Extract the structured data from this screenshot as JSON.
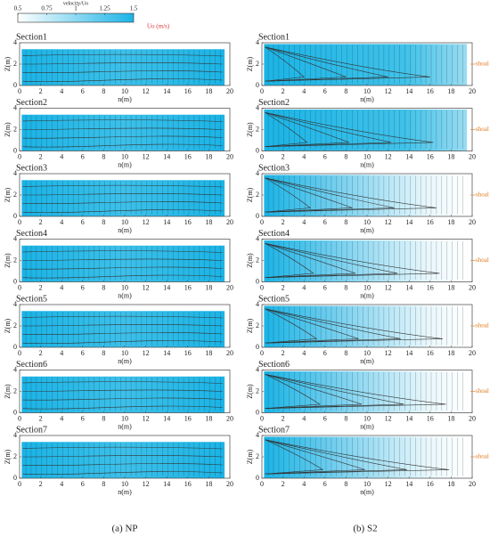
{
  "colorbar": {
    "label": "velocity/Uo",
    "lim": [
      0.5,
      1.5
    ],
    "ticks": [
      0.5,
      0.75,
      1,
      1.25,
      1.5
    ],
    "unit_label": "Uo (m/s)",
    "colors": [
      "#ffffff",
      "#1ab4e6"
    ]
  },
  "captions": [
    "(a)  NP",
    "(b)  S2"
  ],
  "chart_data": [
    {
      "type": "contour",
      "title": "Section1",
      "xlabel": "n(m)",
      "ylabel": "Z(m)",
      "xlim": [
        0,
        20
      ],
      "ylim": [
        0,
        4
      ],
      "xticks": [
        0,
        2,
        4,
        6,
        8,
        10,
        12,
        14,
        16,
        18,
        20
      ],
      "yticks": [
        0,
        2,
        4
      ]
    },
    {
      "type": "contour",
      "title": "Section2",
      "xlabel": "n(m)",
      "ylabel": "Z(m)",
      "xlim": [
        0,
        20
      ],
      "ylim": [
        0,
        4
      ],
      "xticks": [
        0,
        2,
        4,
        6,
        8,
        10,
        12,
        14,
        16,
        18,
        20
      ],
      "yticks": [
        0,
        2,
        4
      ]
    },
    {
      "type": "contour",
      "title": "Section3",
      "xlabel": "n(m)",
      "ylabel": "Z(m)",
      "xlim": [
        0,
        20
      ],
      "ylim": [
        0,
        4
      ],
      "xticks": [
        0,
        2,
        4,
        6,
        8,
        10,
        12,
        14,
        16,
        18,
        20
      ],
      "yticks": [
        0,
        2,
        4
      ]
    },
    {
      "type": "contour",
      "title": "Section4",
      "xlabel": "n(m)",
      "ylabel": "Z(m)",
      "xlim": [
        0,
        20
      ],
      "ylim": [
        0,
        4
      ],
      "xticks": [
        0,
        2,
        4,
        6,
        8,
        10,
        12,
        14,
        16,
        18,
        20
      ],
      "yticks": [
        0,
        2,
        4
      ]
    },
    {
      "type": "contour",
      "title": "Section5",
      "xlabel": "n(m)",
      "ylabel": "Z(m)",
      "xlim": [
        0,
        20
      ],
      "ylim": [
        0,
        4
      ],
      "xticks": [
        0,
        2,
        4,
        6,
        8,
        10,
        12,
        14,
        16,
        18,
        20
      ],
      "yticks": [
        0,
        2,
        4
      ]
    },
    {
      "type": "contour",
      "title": "Section6",
      "xlabel": "n(m)",
      "ylabel": "Z(m)",
      "xlim": [
        0,
        20
      ],
      "ylim": [
        0,
        4
      ],
      "xticks": [
        0,
        2,
        4,
        6,
        8,
        10,
        12,
        14,
        16,
        18,
        20
      ],
      "yticks": [
        0,
        2,
        4
      ]
    },
    {
      "type": "contour",
      "title": "Section7",
      "xlabel": "n(m)",
      "ylabel": "Z(m)",
      "xlim": [
        0,
        20
      ],
      "ylim": [
        0,
        4
      ],
      "xticks": [
        0,
        2,
        4,
        6,
        8,
        10,
        12,
        14,
        16,
        18,
        20
      ],
      "yticks": [
        0,
        2,
        4
      ]
    },
    {
      "type": "contour",
      "title": "Section1",
      "xlabel": "n(m)",
      "ylabel": "Z(m)",
      "xlim": [
        0,
        20
      ],
      "ylim": [
        0,
        4
      ],
      "xticks": [
        0,
        2,
        4,
        6,
        8,
        10,
        12,
        14,
        16,
        18,
        20
      ],
      "yticks": [
        0,
        2,
        4
      ],
      "annotation": "shoal"
    },
    {
      "type": "contour",
      "title": "Section2",
      "xlabel": "n(m)",
      "ylabel": "Z(m)",
      "xlim": [
        0,
        20
      ],
      "ylim": [
        0,
        4
      ],
      "xticks": [
        0,
        2,
        4,
        6,
        8,
        10,
        12,
        14,
        16,
        18,
        20
      ],
      "yticks": [
        0,
        2,
        4
      ],
      "annotation": "shoal"
    },
    {
      "type": "contour",
      "title": "Section3",
      "xlabel": "n(m)",
      "ylabel": "Z(m)",
      "xlim": [
        0,
        20
      ],
      "ylim": [
        0,
        4
      ],
      "xticks": [
        0,
        2,
        4,
        6,
        8,
        10,
        12,
        14,
        16,
        18,
        20
      ],
      "yticks": [
        0,
        2,
        4
      ],
      "annotation": "shoal"
    },
    {
      "type": "contour",
      "title": "Section4",
      "xlabel": "n(m)",
      "ylabel": "Z(m)",
      "xlim": [
        0,
        20
      ],
      "ylim": [
        0,
        4
      ],
      "xticks": [
        0,
        2,
        4,
        6,
        8,
        10,
        12,
        14,
        16,
        18,
        20
      ],
      "yticks": [
        0,
        2,
        4
      ],
      "annotation": "shoal"
    },
    {
      "type": "contour",
      "title": "Section5",
      "xlabel": "n(m)",
      "ylabel": "Z(m)",
      "xlim": [
        0,
        20
      ],
      "ylim": [
        0,
        4
      ],
      "xticks": [
        0,
        2,
        4,
        6,
        8,
        10,
        12,
        14,
        16,
        18,
        20
      ],
      "yticks": [
        0,
        2,
        4
      ],
      "annotation": "shoal"
    },
    {
      "type": "contour",
      "title": "Section6",
      "xlabel": "n(m)",
      "ylabel": "Z(m)",
      "xlim": [
        0,
        20
      ],
      "ylim": [
        0,
        4
      ],
      "xticks": [
        0,
        2,
        4,
        6,
        8,
        10,
        12,
        14,
        16,
        18,
        20
      ],
      "yticks": [
        0,
        2,
        4
      ],
      "annotation": "shoal"
    },
    {
      "type": "contour",
      "title": "Section7",
      "xlabel": "n(m)",
      "ylabel": "Z(m)",
      "xlim": [
        0,
        20
      ],
      "ylim": [
        0,
        4
      ],
      "xticks": [
        0,
        2,
        4,
        6,
        8,
        10,
        12,
        14,
        16,
        18,
        20
      ],
      "yticks": [
        0,
        2,
        4
      ],
      "annotation": "shoal"
    }
  ]
}
